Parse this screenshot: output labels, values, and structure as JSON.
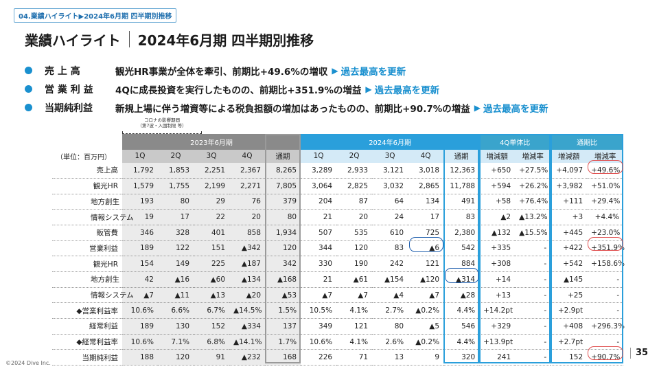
{
  "breadcrumb": {
    "text": "04.業績ハイライト▶2024年6月期 四半期別推移"
  },
  "title": {
    "main": "業績ハイライト",
    "sub": "2024年6月期 四半期別推移"
  },
  "bullets": [
    {
      "label": "売 上 高",
      "text": "観光HR事業が全体を牽引、前期比+49.6%の増収",
      "highlight": "過去最高を更新"
    },
    {
      "label": "営 業 利 益",
      "text": "4Qに成長投資を実行したものの、前期比+351.9%の増益",
      "highlight": "過去最高を更新"
    },
    {
      "label": "当期純利益",
      "text": "新規上場に伴う増資等による税負担額の増加はあったものの、前期比+90.7%の増益",
      "highlight": "過去最高を更新"
    }
  ],
  "annotation": {
    "line1": "コロナの影響期間",
    "line2": "（第7波・入国制限 等）"
  },
  "table": {
    "unit": "（単位：百万円）",
    "groups": {
      "fy23": "2023年6月期",
      "fy24": "2024年6月期",
      "q4": "4Q単体比",
      "yr": "通期比"
    },
    "subheaders": [
      "1Q",
      "2Q",
      "3Q",
      "4Q",
      "通期",
      "1Q",
      "2Q",
      "3Q",
      "4Q",
      "通期",
      "増減額",
      "増減率",
      "増減額",
      "増減率"
    ],
    "rows": [
      {
        "label": "売上高",
        "sub": false,
        "cells": [
          "1,792",
          "1,853",
          "2,251",
          "2,367",
          "8,265",
          "3,289",
          "2,933",
          "3,121",
          "3,018",
          "12,363",
          "+650",
          "+27.5%",
          "+4,097",
          "+49.6%"
        ]
      },
      {
        "label": "観光HR",
        "sub": true,
        "cells": [
          "1,579",
          "1,755",
          "2,199",
          "2,271",
          "7,805",
          "3,064",
          "2,825",
          "3,032",
          "2,865",
          "11,788",
          "+594",
          "+26.2%",
          "+3,982",
          "+51.0%"
        ]
      },
      {
        "label": "地方創生",
        "sub": true,
        "cells": [
          "193",
          "80",
          "29",
          "76",
          "379",
          "204",
          "87",
          "64",
          "134",
          "491",
          "+58",
          "+76.4%",
          "+111",
          "+29.4%"
        ]
      },
      {
        "label": "情報システム",
        "sub": true,
        "cells": [
          "19",
          "17",
          "22",
          "20",
          "80",
          "21",
          "20",
          "24",
          "17",
          "83",
          "▲2",
          "▲13.2%",
          "+3",
          "+4.4%"
        ]
      },
      {
        "label": "販管費",
        "sub": false,
        "cells": [
          "346",
          "328",
          "401",
          "858",
          "1,934",
          "507",
          "535",
          "610",
          "725",
          "2,380",
          "▲132",
          "▲15.5%",
          "+445",
          "+23.0%"
        ]
      },
      {
        "label": "営業利益",
        "sub": false,
        "cells": [
          "189",
          "122",
          "151",
          "▲342",
          "120",
          "344",
          "120",
          "83",
          "▲6",
          "542",
          "+335",
          "-",
          "+422",
          "+351.9%"
        ]
      },
      {
        "label": "観光HR",
        "sub": true,
        "cells": [
          "154",
          "149",
          "225",
          "▲187",
          "342",
          "330",
          "190",
          "242",
          "121",
          "884",
          "+308",
          "-",
          "+542",
          "+158.6%"
        ]
      },
      {
        "label": "地方創生",
        "sub": true,
        "cells": [
          "42",
          "▲16",
          "▲60",
          "▲134",
          "▲168",
          "21",
          "▲61",
          "▲154",
          "▲120",
          "▲314",
          "+14",
          "-",
          "▲145",
          "-"
        ]
      },
      {
        "label": "情報システム",
        "sub": true,
        "cells": [
          "▲7",
          "▲11",
          "▲13",
          "▲20",
          "▲53",
          "▲7",
          "▲7",
          "▲4",
          "▲7",
          "▲28",
          "+13",
          "-",
          "+25",
          "-"
        ]
      },
      {
        "label": "◆営業利益率",
        "sub": false,
        "cells": [
          "10.6%",
          "6.6%",
          "6.7%",
          "▲14.5%",
          "1.5%",
          "10.5%",
          "4.1%",
          "2.7%",
          "▲0.2%",
          "4.4%",
          "+14.2pt",
          "-",
          "+2.9pt",
          "-"
        ]
      },
      {
        "label": "経常利益",
        "sub": false,
        "cells": [
          "189",
          "130",
          "152",
          "▲334",
          "137",
          "349",
          "121",
          "80",
          "▲5",
          "546",
          "+329",
          "-",
          "+408",
          "+296.3%"
        ]
      },
      {
        "label": "◆経常利益率",
        "sub": false,
        "cells": [
          "10.6%",
          "7.1%",
          "6.8%",
          "▲14.1%",
          "1.7%",
          "10.6%",
          "4.1%",
          "2.6%",
          "▲0.2%",
          "4.4%",
          "+13.9pt",
          "-",
          "+2.7pt",
          "-"
        ]
      },
      {
        "label": "当期純利益",
        "sub": false,
        "cells": [
          "188",
          "120",
          "91",
          "▲232",
          "168",
          "226",
          "71",
          "13",
          "9",
          "320",
          "241",
          "-",
          "152",
          "+90.7%"
        ]
      }
    ]
  },
  "footer": {
    "copyright": "©2024 Dive Inc.",
    "page": "35"
  },
  "colors": {
    "accent": "#1a90cf",
    "highlight_red": "#e05050",
    "highlight_blue": "#1f5fae"
  }
}
